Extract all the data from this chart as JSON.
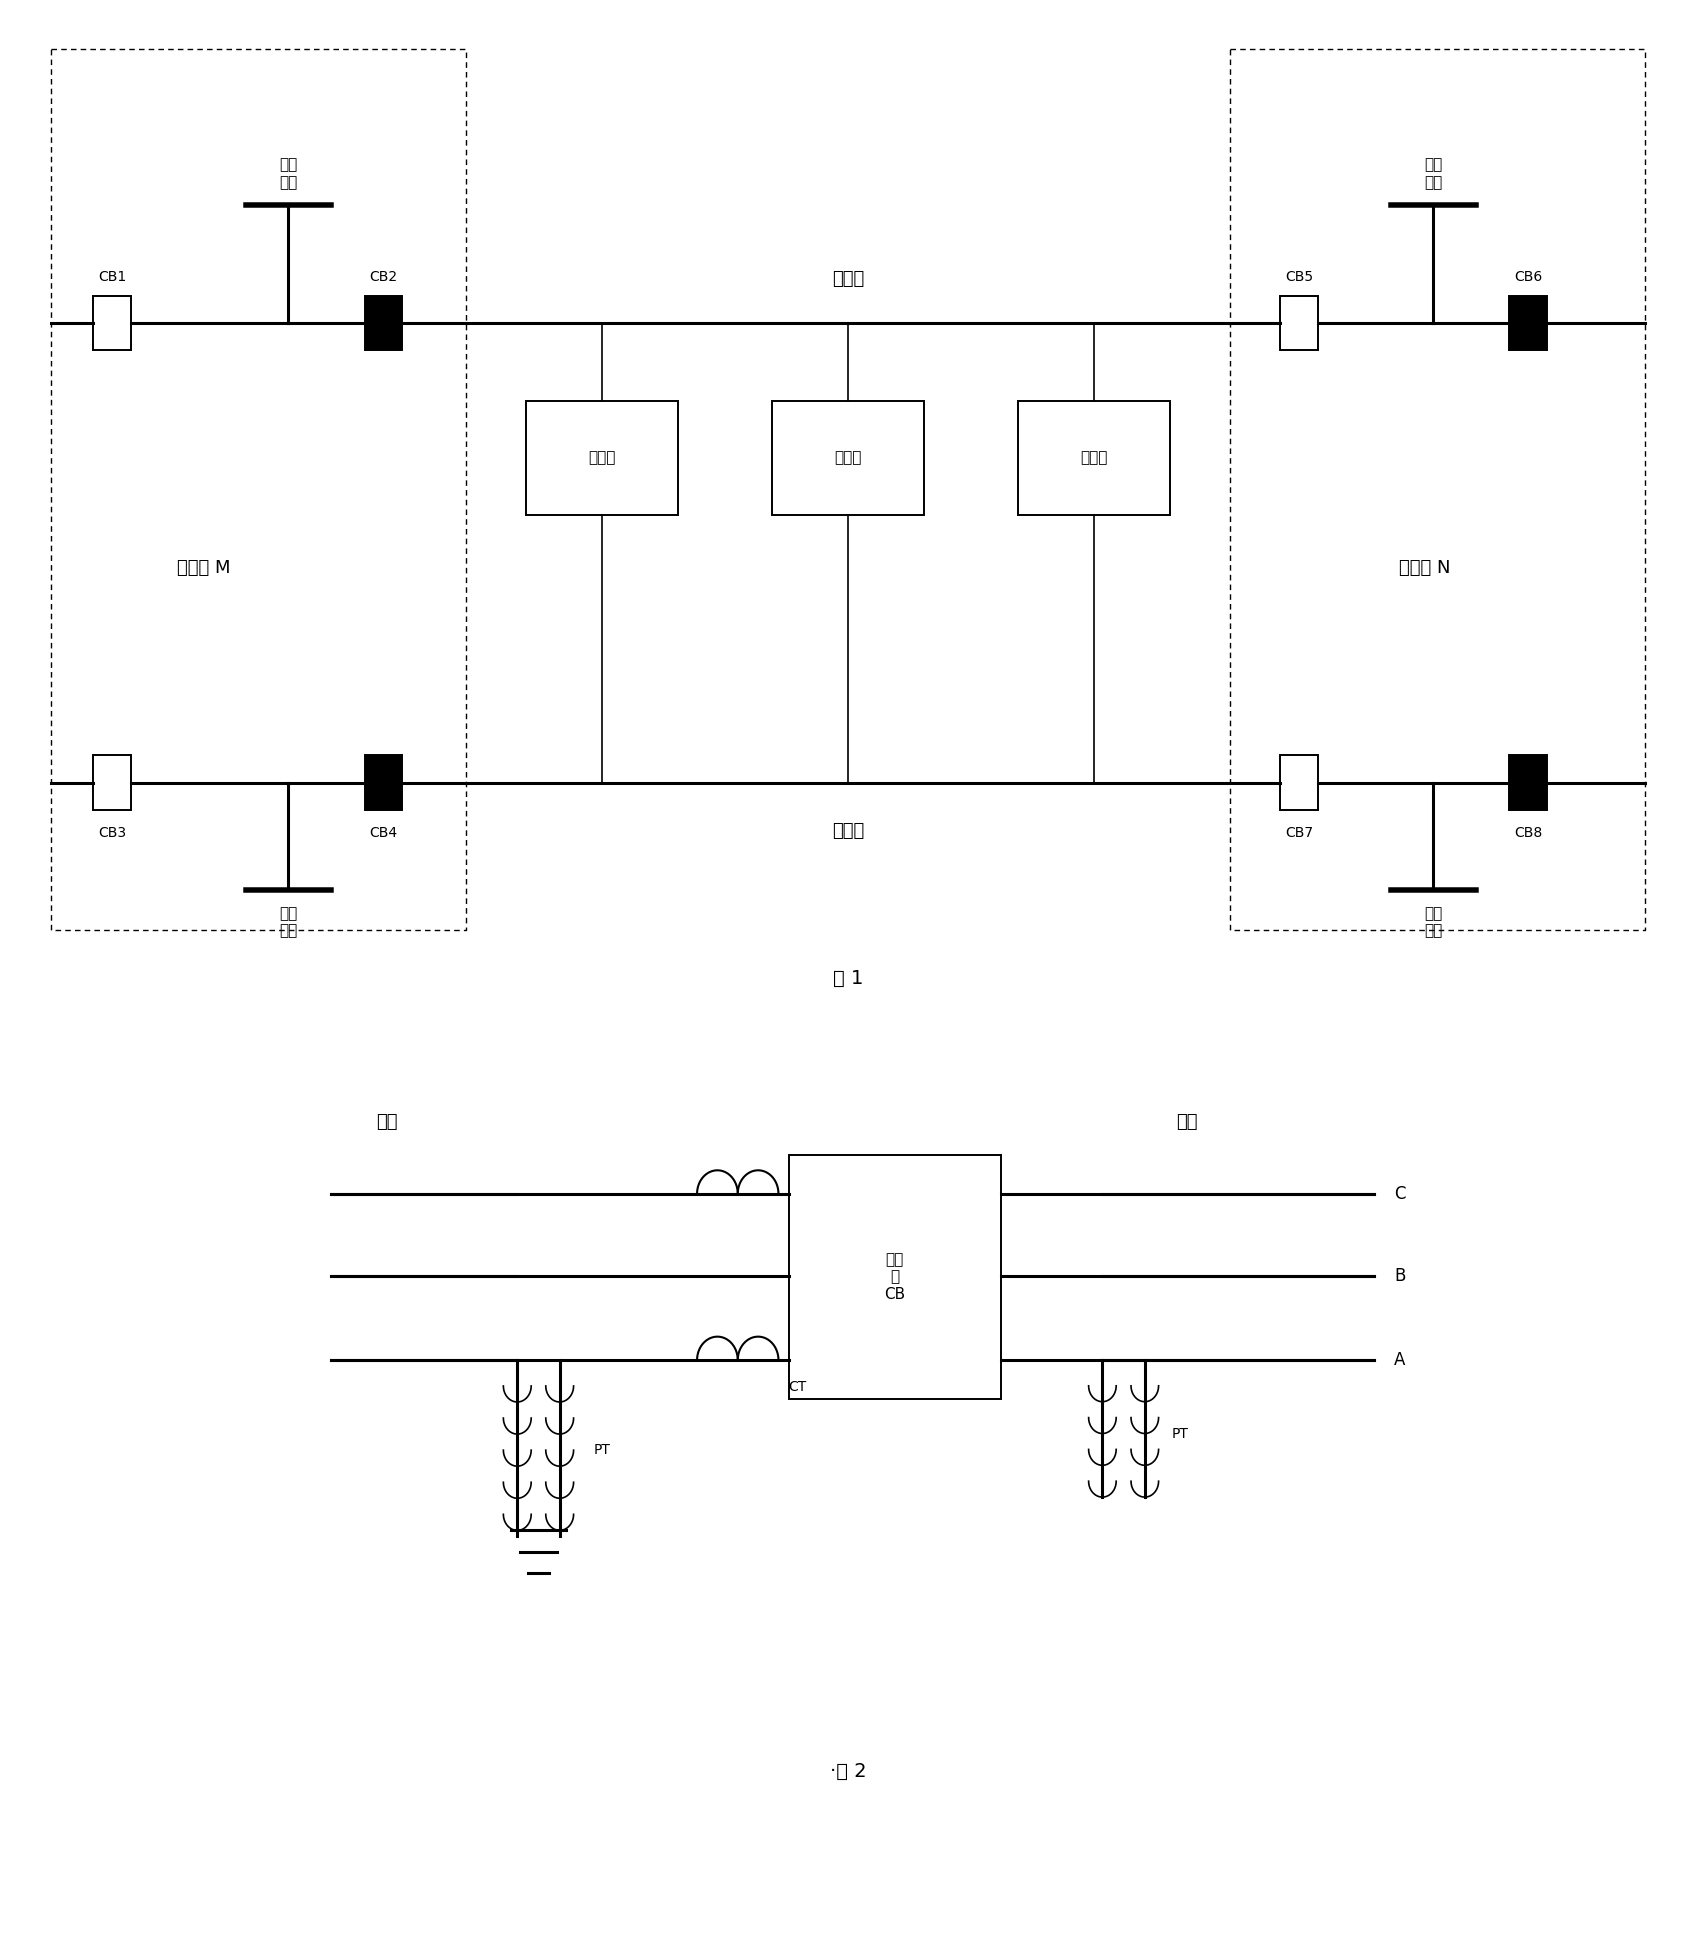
{
  "fig_width": 16.96,
  "fig_height": 19.57,
  "bg_color": "#ffffff",
  "fig1_label": "图 1",
  "fig2_label": "·图 2",
  "d1": {
    "label_M": "配电室 M",
    "label_N": "配电室 N",
    "label_zixin_line": "自闭线",
    "label_gutong_line": "贯通线",
    "label_zixin_bus": "自闭\n母线",
    "label_gutong_bus": "贯通\n母线",
    "label_ctrl": "控制筱"
  },
  "d2": {
    "label_station": "电站",
    "label_route": "线路",
    "label_cb": "断路\n器\nCB",
    "label_CT": "CT",
    "label_PT": "PT",
    "phases": [
      "C",
      "B",
      "A"
    ]
  }
}
